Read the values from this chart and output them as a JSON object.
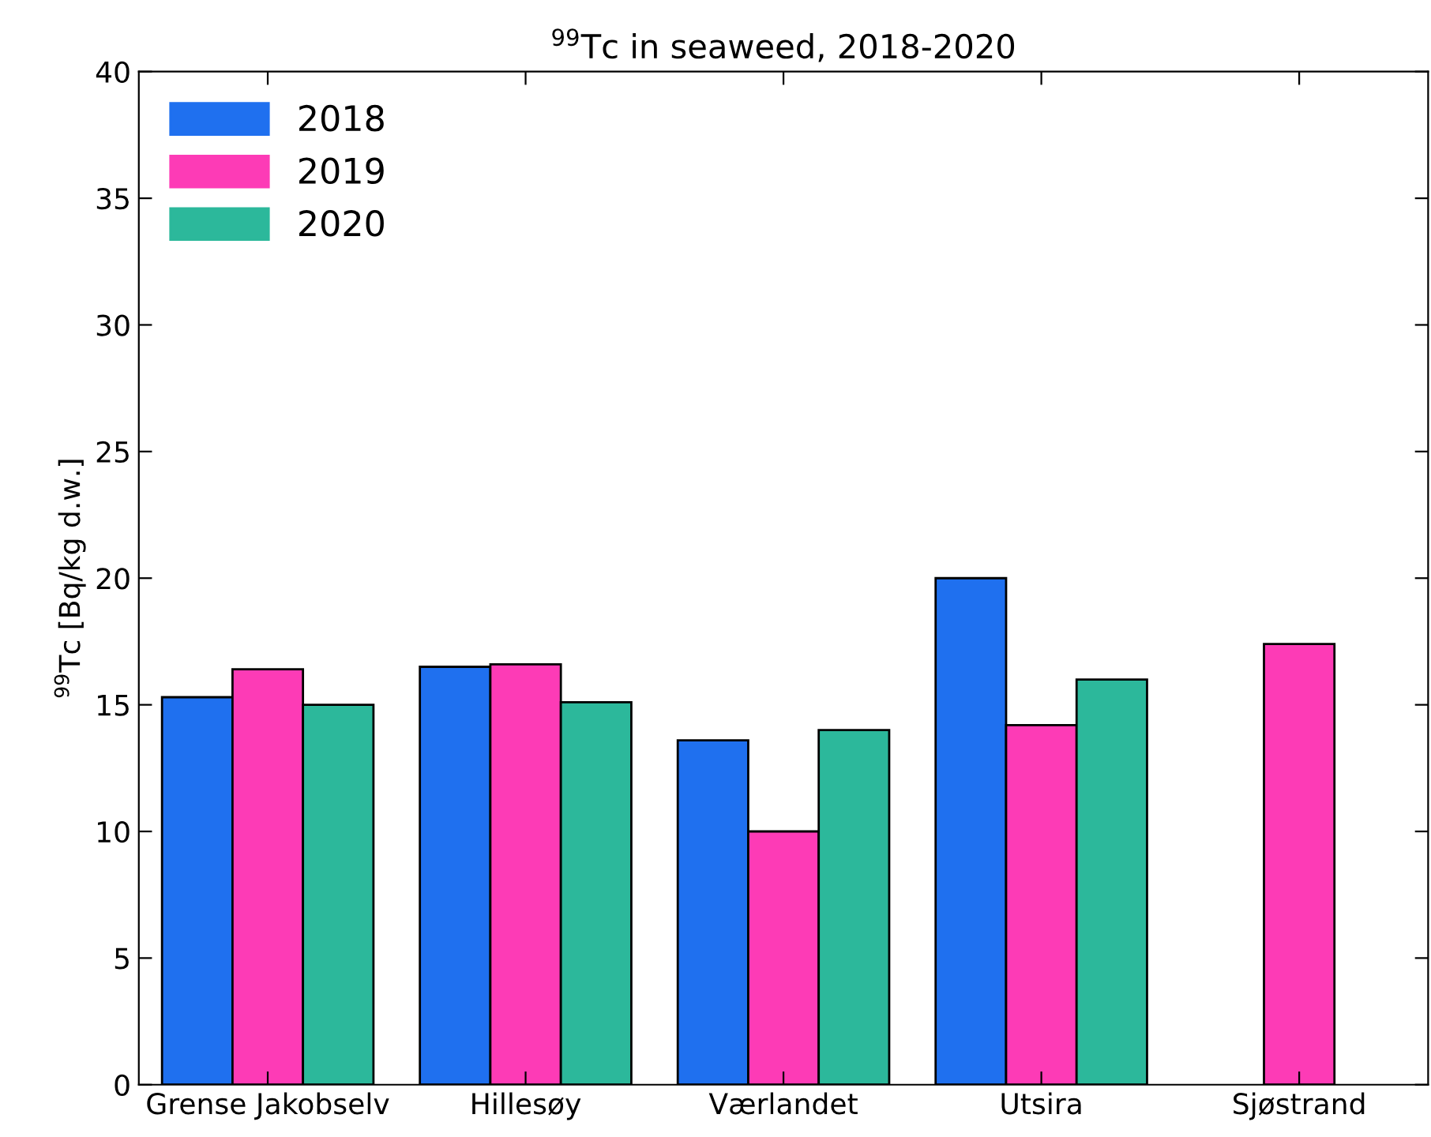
{
  "chart_data": {
    "type": "bar",
    "title": "$^{99}$Tc in seaweed, 2018-2020",
    "ylabel": "$^{99}$Tc [Bq/kg d.w.]",
    "categories": [
      "Grense Jakobselv",
      "Hillesøy",
      "Værlandet",
      "Utsira",
      "Sjøstrand"
    ],
    "series": [
      {
        "name": "2018",
        "color": "#1f70ef",
        "values": [
          15.3,
          16.5,
          13.6,
          20.0,
          null
        ]
      },
      {
        "name": "2019",
        "color": "#fd3bb6",
        "values": [
          16.4,
          16.6,
          10.0,
          14.2,
          17.4
        ]
      },
      {
        "name": "2020",
        "color": "#2cb89b",
        "values": [
          15.0,
          15.1,
          14.0,
          16.0,
          null
        ]
      }
    ],
    "ylim": [
      0,
      40
    ],
    "yticks": [
      0,
      5,
      10,
      15,
      20,
      25,
      30,
      35,
      40
    ],
    "grid": false,
    "legend": "top left"
  }
}
